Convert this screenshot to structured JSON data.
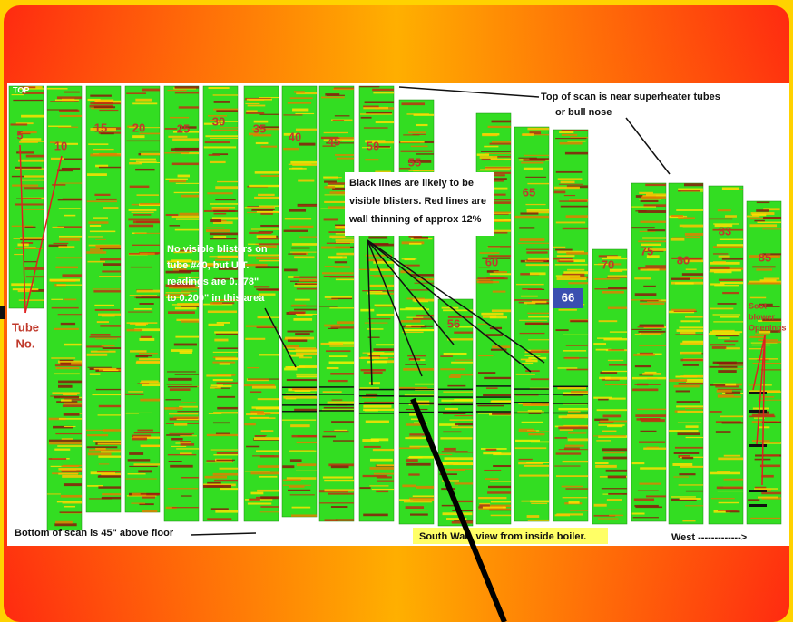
{
  "top_marker": "TOP",
  "tubes": [
    {
      "label": "5"
    },
    {
      "label": "10"
    },
    {
      "label": "15"
    },
    {
      "label": "20"
    },
    {
      "label": "25"
    },
    {
      "label": "30"
    },
    {
      "label": "35"
    },
    {
      "label": "40"
    },
    {
      "label": "45"
    },
    {
      "label": "50"
    },
    {
      "label": "55"
    },
    {
      "label": "56"
    },
    {
      "label": "60"
    },
    {
      "label": "65"
    },
    {
      "label": "66"
    },
    {
      "label": "70"
    },
    {
      "label": "75"
    },
    {
      "label": "80"
    },
    {
      "label": "83"
    },
    {
      "label": "85"
    }
  ],
  "annotations": {
    "top_of_scan": [
      "Top of scan is near superheater tubes",
      "or bull nose"
    ],
    "black_lines": [
      "Black lines are likely to be",
      "visible blisters. Red lines are",
      "wall thinning of approx 12%"
    ],
    "no_blisters": [
      "No visible blisters on",
      "tube #40, but U.T.",
      "readings are 0.178\"",
      "to 0.200\" in this area"
    ],
    "tube_no": [
      "Tube",
      "No."
    ],
    "soot_blower": [
      "Soot",
      "blower",
      "Openings"
    ],
    "bottom_of_scan": "Bottom of scan is 45\" above floor",
    "south_wall": "South Wall, view from inside boiler.",
    "west": "West ------------->"
  }
}
